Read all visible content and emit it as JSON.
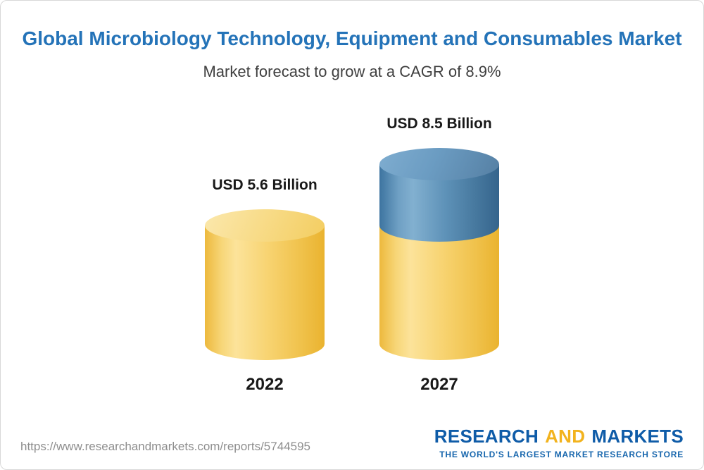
{
  "chart_data": {
    "type": "bar",
    "variant": "3d-cylinder",
    "title": "Global Microbiology Technology, Equipment and Consumables Market",
    "subtitle": "Market forecast to grow at a CAGR of 8.9%",
    "unit": "USD Billion",
    "categories": [
      "2022",
      "2027"
    ],
    "values": [
      5.6,
      8.5
    ],
    "cagr_percent": 8.9,
    "legend": false,
    "bars": [
      {
        "category": "2022",
        "value": 5.6,
        "label": "USD 5.6 Billion",
        "segments": [
          {
            "value": 5.6,
            "color": "yellow"
          }
        ]
      },
      {
        "category": "2027",
        "value": 8.5,
        "label": "USD 8.5 Billion",
        "segments": [
          {
            "value": 5.6,
            "color": "yellow"
          },
          {
            "value": 2.9,
            "color": "blue"
          }
        ]
      }
    ]
  },
  "colors": {
    "title_blue": "#2473B8",
    "bar_yellow": "#F5C85C",
    "bar_blue": "#4E83AD",
    "logo_blue": "#0F5CA8",
    "logo_gold": "#F2B31E",
    "text_dark": "#191919",
    "url_gray": "#8E8E8E"
  },
  "footer": {
    "url": "https://www.researchandmarkets.com/reports/5744595",
    "logo": {
      "research": "RESEARCH",
      "and": "AND",
      "markets": "MARKETS",
      "tagline": "THE WORLD'S LARGEST MARKET RESEARCH STORE"
    }
  }
}
